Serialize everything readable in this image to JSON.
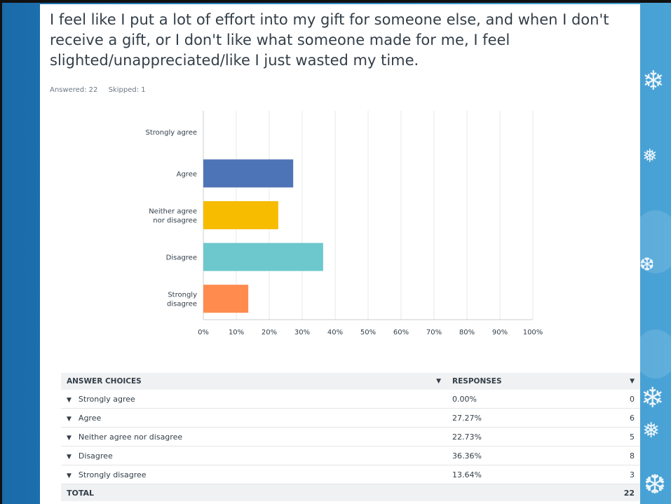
{
  "question": {
    "title": "I feel like I put a lot of effort into my gift for someone else, and when I don't receive a gift, or I don't like what someone made for me, I feel slighted/unappreciated/like I just wasted my time."
  },
  "stats": {
    "answered": "Answered: 22",
    "skipped": "Skipped: 1"
  },
  "chart_data": {
    "type": "bar",
    "orientation": "horizontal",
    "categories": [
      "Strongly agree",
      "Agree",
      "Neither agree nor disagree",
      "Disagree",
      "Strongly disagree"
    ],
    "category_label_lines": [
      [
        "Strongly agree"
      ],
      [
        "Agree"
      ],
      [
        "Neither agree",
        "nor disagree"
      ],
      [
        "Disagree"
      ],
      [
        "Strongly",
        "disagree"
      ]
    ],
    "values": [
      0.0,
      27.27,
      22.73,
      36.36,
      13.64
    ],
    "colors": [
      "#4d74b6",
      "#4d74b6",
      "#f7bb00",
      "#6cc8cc",
      "#ff8b4e"
    ],
    "xlim": [
      0,
      100
    ],
    "x_ticks": [
      "0%",
      "10%",
      "20%",
      "30%",
      "40%",
      "50%",
      "60%",
      "70%",
      "80%",
      "90%",
      "100%"
    ],
    "grid": true
  },
  "table": {
    "headers": {
      "choices": "ANSWER CHOICES",
      "responses": "RESPONSES"
    },
    "rows": [
      {
        "choice": "Strongly agree",
        "percent": "0.00%",
        "count": "0"
      },
      {
        "choice": "Agree",
        "percent": "27.27%",
        "count": "6"
      },
      {
        "choice": "Neither agree nor disagree",
        "percent": "22.73%",
        "count": "5"
      },
      {
        "choice": "Disagree",
        "percent": "36.36%",
        "count": "8"
      },
      {
        "choice": "Strongly disagree",
        "percent": "13.64%",
        "count": "3"
      }
    ],
    "total_label": "TOTAL",
    "total_value": "22"
  },
  "theme": {
    "accent": "#4d74b6",
    "text": "#333e48",
    "header_bg": "#f0f1f2"
  }
}
